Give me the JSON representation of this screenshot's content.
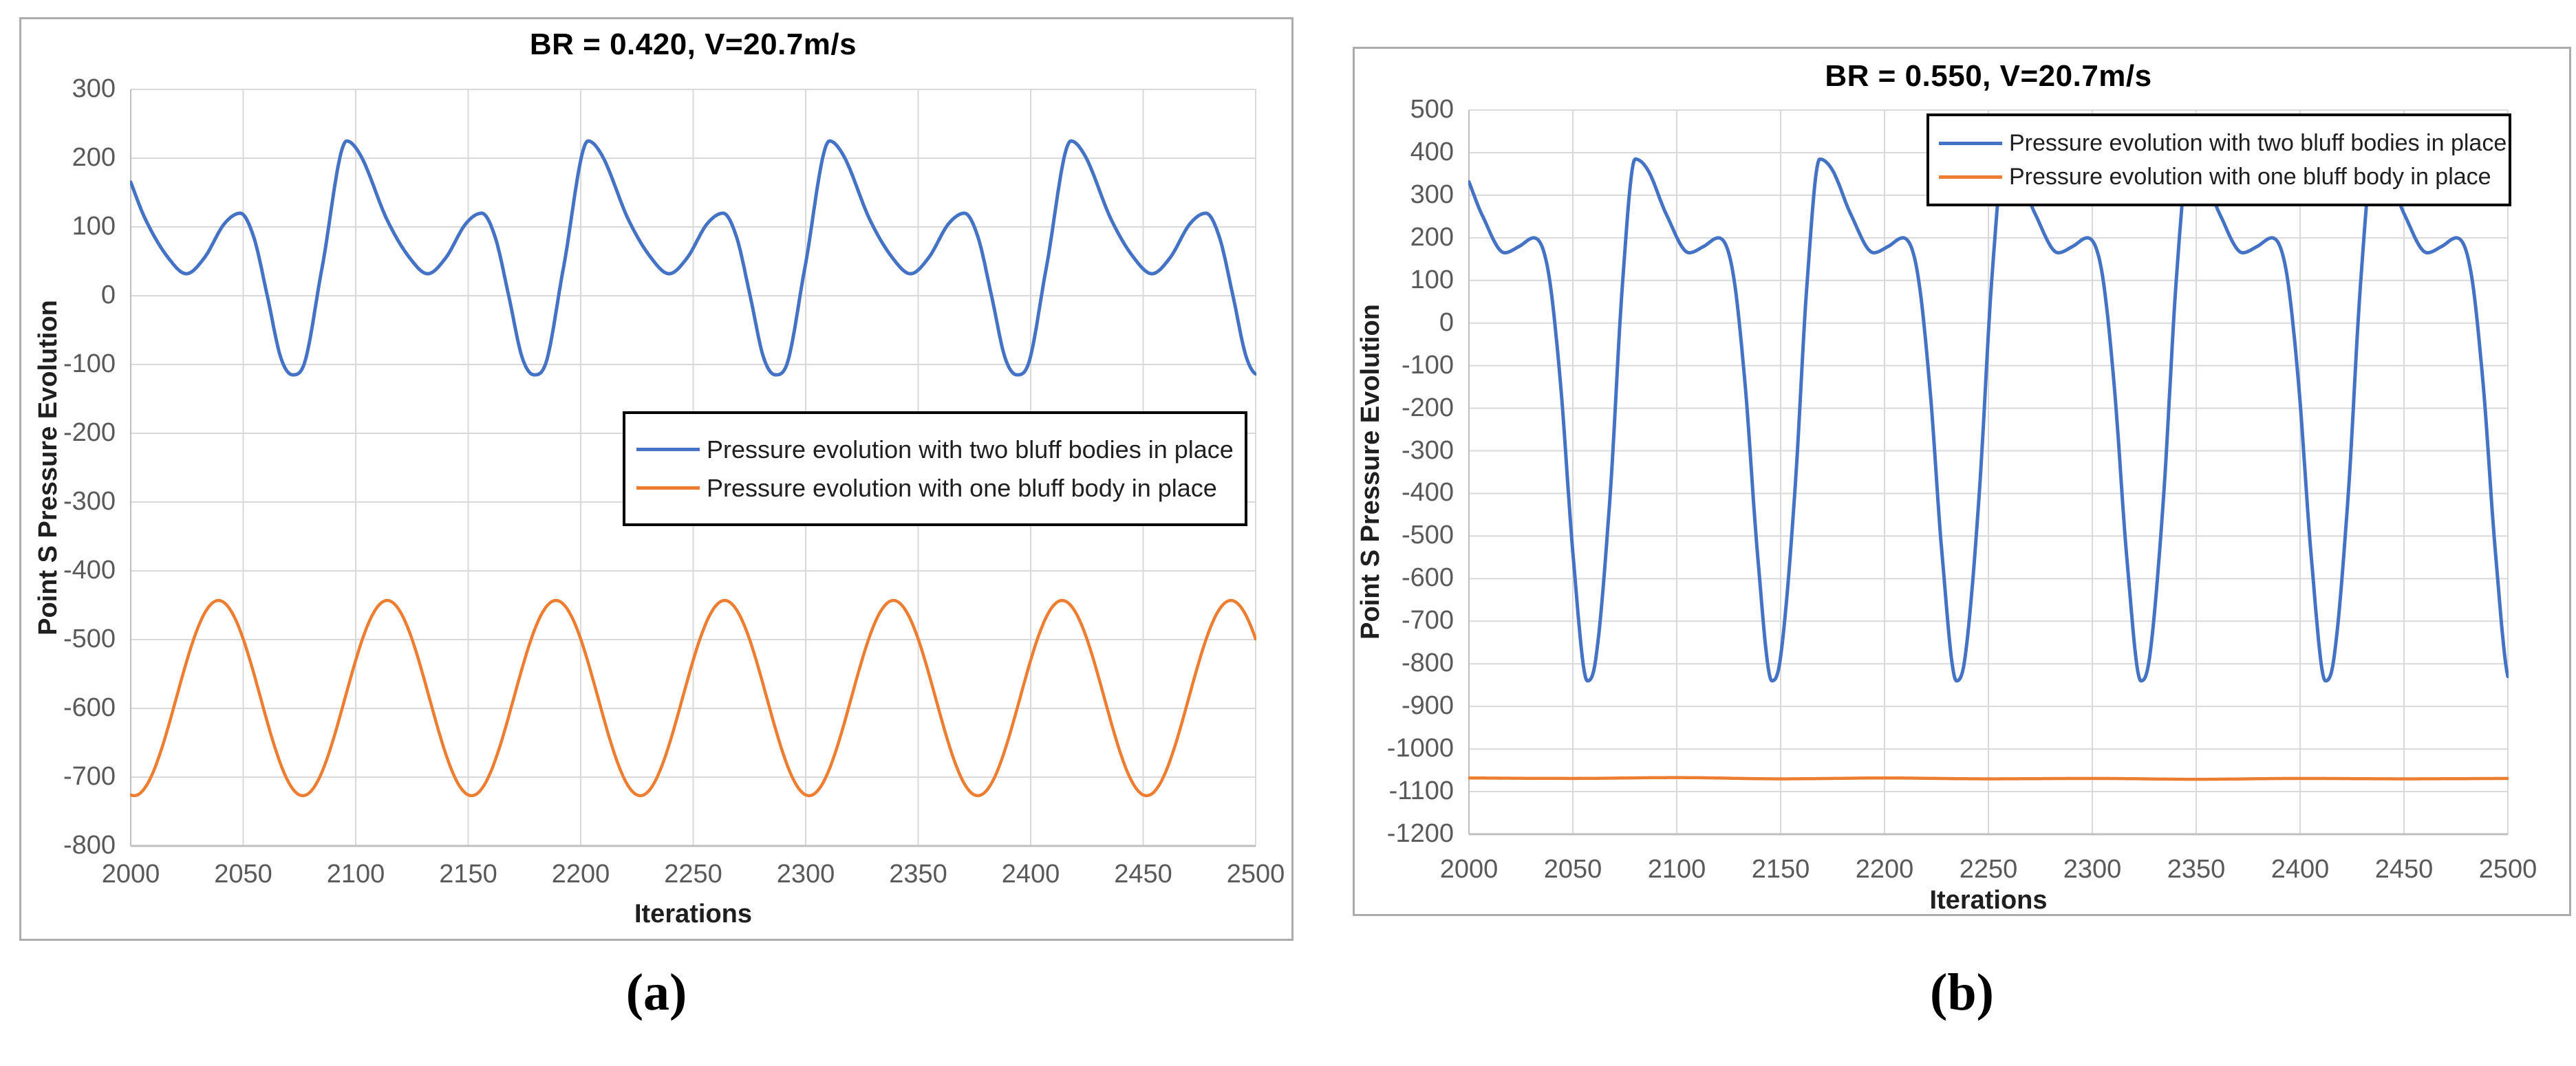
{
  "captions": {
    "a": "(a)",
    "b": "(b)"
  },
  "colors": {
    "series_blue": "#4472C4",
    "series_orange": "#ED7D31",
    "gridline": "#D9D9D9",
    "axis_line": "#BFBFBF",
    "tick_label": "#595959",
    "title_text": "#000000",
    "panel_border": "#ACACAC",
    "legend_border": "#000000",
    "legend_background": "#FFFFFF"
  },
  "chart_data": [
    {
      "id": "a",
      "type": "line",
      "title": "BR = 0.420, V=20.7m/s",
      "grid": true,
      "legend_position": "inside-middle-right",
      "x_axis": {
        "label": "Iterations",
        "min": 2000,
        "max": 2500,
        "tick_step": 50,
        "ticks": [
          2000,
          2050,
          2100,
          2150,
          2200,
          2250,
          2300,
          2350,
          2400,
          2450,
          2500
        ]
      },
      "y_axis": {
        "label": "Point S Pressure Evolution",
        "min": -800,
        "max": 300,
        "tick_step": 100,
        "ticks": [
          300,
          200,
          100,
          0,
          -100,
          -200,
          -300,
          -400,
          -500,
          -600,
          -700,
          -800
        ]
      },
      "series": [
        {
          "name": "Pressure evolution with two bluff bodies in place",
          "color": "#4472C4",
          "kind": "periodic-profile",
          "period": 107.3,
          "anchor": 1964.7,
          "cycles": 6,
          "profile": [
            [
              0,
              -115
            ],
            [
              5,
              -100
            ],
            [
              13,
              40
            ],
            [
              24,
              225
            ],
            [
              30,
              205
            ],
            [
              42,
              110
            ],
            [
              52,
              55
            ],
            [
              60,
              32
            ],
            [
              68,
              55
            ],
            [
              77,
              105
            ],
            [
              84,
              120
            ],
            [
              90,
              85
            ],
            [
              96,
              0
            ],
            [
              102,
              -90
            ]
          ],
          "main_peak_value": 225,
          "main_trough_value": -115,
          "secondary_peak_value": 120,
          "secondary_dip_value": 32,
          "main_peak_iterations": [
            2096,
            2203.3,
            2310.6,
            2417.9
          ],
          "main_trough_iterations": [
            2072,
            2179.3,
            2286.6,
            2393.9
          ]
        },
        {
          "name": "Pressure evolution with one bluff body in place",
          "color": "#ED7D31",
          "kind": "sine",
          "mean": -585,
          "amplitude": 142,
          "period": 75,
          "crest_at": 2039,
          "peak_value": -443,
          "trough_value": -727,
          "crest_iterations": [
            2039,
            2114,
            2189,
            2264,
            2339,
            2414,
            2489
          ]
        }
      ]
    },
    {
      "id": "b",
      "type": "line",
      "title": "BR = 0.550, V=20.7m/s",
      "grid": true,
      "legend_position": "inside-top-right",
      "x_axis": {
        "label": "Iterations",
        "min": 2000,
        "max": 2500,
        "tick_step": 50,
        "ticks": [
          2000,
          2050,
          2100,
          2150,
          2200,
          2250,
          2300,
          2350,
          2400,
          2450,
          2500
        ]
      },
      "y_axis": {
        "label": "Point S Pressure Evolution",
        "min": -1200,
        "max": 500,
        "tick_step": 100,
        "ticks": [
          500,
          400,
          300,
          200,
          100,
          0,
          -100,
          -200,
          -300,
          -400,
          -500,
          -600,
          -700,
          -800,
          -900,
          -1000,
          -1100,
          -1200
        ]
      },
      "series": [
        {
          "name": "Pressure evolution with two bluff bodies in place",
          "color": "#4472C4",
          "kind": "periodic-profile",
          "period": 88.8,
          "anchor": 1968.2,
          "cycles": 7,
          "profile": [
            [
              0,
              -840
            ],
            [
              4,
              -790
            ],
            [
              11,
              -400
            ],
            [
              17,
              100
            ],
            [
              23,
              385
            ],
            [
              29,
              360
            ],
            [
              38,
              255
            ],
            [
              49,
              165
            ],
            [
              56,
              180
            ],
            [
              63,
              200
            ],
            [
              70,
              120
            ],
            [
              76,
              -150
            ],
            [
              82,
              -550
            ]
          ],
          "main_peak_value": 385,
          "main_trough_value": -840,
          "secondary_peak_value": 200,
          "secondary_dip_value": 165,
          "main_trough_iterations": [
            2057,
            2145.8,
            2234.6,
            2323.4,
            2412.2,
            2501
          ],
          "main_peak_iterations": [
            2080,
            2168.8,
            2257.6,
            2346.4,
            2435.2
          ]
        },
        {
          "name": "Pressure evolution with one bluff body in place",
          "color": "#ED7D31",
          "kind": "points",
          "approx_constant_value": -1069,
          "points": [
            [
              2000,
              -1068
            ],
            [
              2050,
              -1069
            ],
            [
              2100,
              -1067
            ],
            [
              2150,
              -1070
            ],
            [
              2200,
              -1068
            ],
            [
              2250,
              -1070
            ],
            [
              2300,
              -1069
            ],
            [
              2350,
              -1071
            ],
            [
              2400,
              -1069
            ],
            [
              2450,
              -1070
            ],
            [
              2500,
              -1069
            ]
          ]
        }
      ]
    }
  ]
}
